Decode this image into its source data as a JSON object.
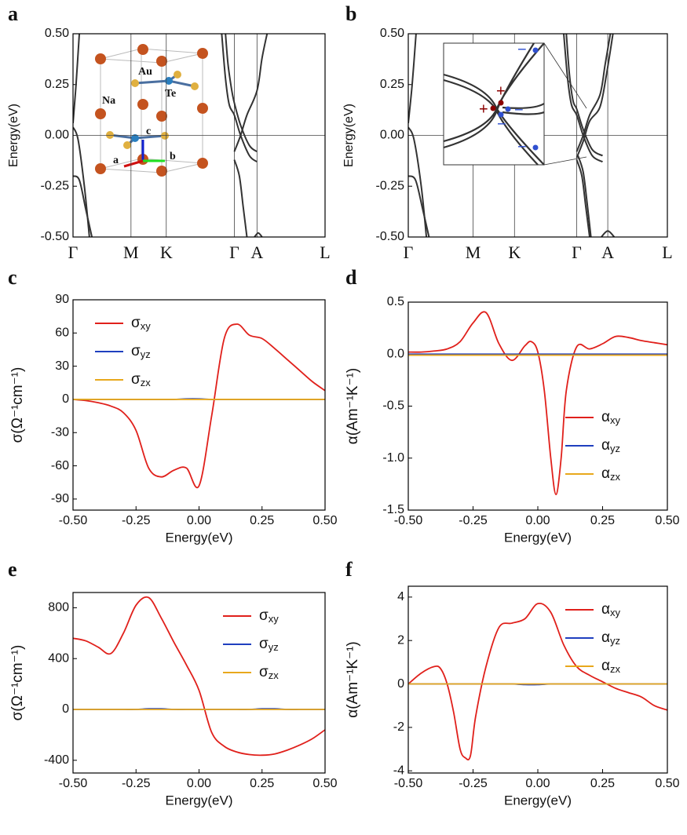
{
  "chart_data": [
    {
      "type": "line",
      "panel_label": "a",
      "ylabel": "Energy(eV)",
      "xlim": [
        0,
        1
      ],
      "ylim": [
        -0.5,
        0.5
      ],
      "xticks": [
        {
          "value": 0,
          "label": "Γ"
        },
        {
          "value": 0.23,
          "label": "M"
        },
        {
          "value": 0.37,
          "label": "K"
        },
        {
          "value": 0.64,
          "label": "Γ"
        },
        {
          "value": 0.73,
          "label": "A"
        },
        {
          "value": 1,
          "label": "L"
        }
      ],
      "yticks": [
        {
          "value": 0.5,
          "label": "0.50"
        },
        0.25,
        {
          "value": 0,
          "label": "0.00"
        },
        -0.25,
        {
          "value": -0.5,
          "label": "-0.50"
        }
      ],
      "vlines": true,
      "hline": 0,
      "annotations": [
        "Au",
        "Te",
        "Na",
        "c",
        "a",
        "b"
      ],
      "series": [
        {
          "color": "#333333",
          "x": [
            0,
            0.012,
            0.025
          ],
          "values": [
            0.06,
            0.25,
            0.5
          ]
        },
        {
          "color": "#333333",
          "x": [
            0,
            0.02,
            0.045,
            0.065
          ],
          "values": [
            0.04,
            -0.02,
            -0.25,
            -0.5
          ]
        },
        {
          "color": "#333333",
          "x": [
            0,
            0.025,
            0.05,
            0.075
          ],
          "values": [
            -0.2,
            -0.22,
            -0.36,
            -0.5
          ]
        },
        {
          "color": "#333333",
          "x": [
            0.59,
            0.605,
            0.62,
            0.64,
            0.665,
            0.7,
            0.73
          ],
          "values": [
            0.5,
            0.28,
            0.15,
            0.1,
            0.0,
            -0.1,
            -0.13
          ]
        },
        {
          "color": "#333333",
          "x": [
            0.605,
            0.615,
            0.63,
            0.64,
            0.665,
            0.7,
            0.73
          ],
          "values": [
            0.5,
            0.35,
            0.22,
            0.16,
            0.05,
            -0.05,
            -0.08
          ]
        },
        {
          "color": "#333333",
          "x": [
            0.64,
            0.665,
            0.69,
            0.73,
            0.75,
            0.77
          ],
          "values": [
            -0.08,
            0.0,
            0.1,
            0.22,
            0.38,
            0.5
          ]
        },
        {
          "color": "#333333",
          "x": [
            0.64,
            0.66,
            0.675,
            0.69
          ],
          "values": [
            -0.12,
            -0.2,
            -0.35,
            -0.5
          ]
        },
        {
          "color": "#333333",
          "x": [
            0.72,
            0.735,
            0.75
          ],
          "values": [
            -0.5,
            -0.48,
            -0.5
          ]
        }
      ]
    },
    {
      "type": "line",
      "panel_label": "b",
      "ylabel": "Energy(eV)",
      "xlim": [
        0,
        1
      ],
      "ylim": [
        -0.5,
        0.5
      ],
      "xticks": [
        {
          "value": 0,
          "label": "Γ"
        },
        {
          "value": 0.25,
          "label": "M"
        },
        {
          "value": 0.41,
          "label": "K"
        },
        {
          "value": 0.65,
          "label": "Γ"
        },
        {
          "value": 0.77,
          "label": "A"
        },
        {
          "value": 1,
          "label": "L"
        }
      ],
      "yticks": [
        {
          "value": 0.5,
          "label": "0.50"
        },
        0.25,
        {
          "value": 0,
          "label": "0.00"
        },
        -0.25,
        {
          "value": -0.5,
          "label": "-0.50"
        }
      ],
      "vlines": true,
      "hline": 0,
      "annotations": [
        "+",
        "+",
        "−",
        "−",
        "−",
        "−"
      ],
      "series": [
        {
          "color": "#333333",
          "x": [
            0,
            0.015,
            0.03
          ],
          "values": [
            0.06,
            0.25,
            0.5
          ]
        },
        {
          "color": "#333333",
          "x": [
            0,
            0.022,
            0.05,
            0.07
          ],
          "values": [
            0.04,
            -0.02,
            -0.25,
            -0.5
          ]
        },
        {
          "color": "#333333",
          "x": [
            0,
            0.028,
            0.055,
            0.08
          ],
          "values": [
            -0.2,
            -0.22,
            -0.36,
            -0.5
          ]
        },
        {
          "color": "#333333",
          "x": [
            0.6,
            0.615,
            0.63,
            0.65,
            0.675,
            0.71,
            0.75
          ],
          "values": [
            0.5,
            0.28,
            0.15,
            0.1,
            0.0,
            -0.1,
            -0.13
          ]
        },
        {
          "color": "#333333",
          "x": [
            0.61,
            0.622,
            0.636,
            0.65,
            0.675,
            0.71,
            0.75
          ],
          "values": [
            0.5,
            0.3,
            0.17,
            0.13,
            0.03,
            -0.07,
            -0.1
          ]
        },
        {
          "color": "#333333",
          "x": [
            0.65,
            0.675,
            0.7,
            0.74,
            0.76,
            0.78
          ],
          "values": [
            -0.08,
            0.0,
            0.1,
            0.2,
            0.35,
            0.5
          ]
        },
        {
          "color": "#333333",
          "x": [
            0.65,
            0.675,
            0.7,
            0.74,
            0.765,
            0.79
          ],
          "values": [
            -0.11,
            -0.03,
            0.07,
            0.14,
            0.3,
            0.5
          ]
        },
        {
          "color": "#333333",
          "x": [
            0.65,
            0.67,
            0.685,
            0.7
          ],
          "values": [
            -0.12,
            -0.2,
            -0.35,
            -0.5
          ]
        },
        {
          "color": "#333333",
          "x": [
            0.655,
            0.675,
            0.69,
            0.705
          ],
          "values": [
            -0.1,
            -0.18,
            -0.33,
            -0.5
          ]
        },
        {
          "color": "#333333",
          "x": [
            0.745,
            0.77,
            0.795
          ],
          "values": [
            -0.5,
            -0.47,
            -0.5
          ]
        }
      ]
    },
    {
      "type": "line",
      "panel_label": "c",
      "xlabel": "Energy(eV)",
      "ylabel": "σ(Ω⁻¹cm⁻¹)",
      "xlim": [
        -0.5,
        0.5
      ],
      "ylim": [
        -100,
        90
      ],
      "xticks": [
        {
          "value": -0.5,
          "label": "-0.50"
        },
        -0.25,
        {
          "value": 0,
          "label": "0.00"
        },
        0.25,
        {
          "value": 0.5,
          "label": "0.50"
        }
      ],
      "yticks": [
        -90,
        -60,
        -30,
        0,
        30,
        60,
        90
      ],
      "legend": "upper left",
      "x": [
        -0.5,
        -0.45,
        -0.4,
        -0.35,
        -0.3,
        -0.25,
        -0.2,
        -0.15,
        -0.1,
        -0.05,
        0,
        0.05,
        0.1,
        0.15,
        0.2,
        0.25,
        0.3,
        0.35,
        0.4,
        0.45,
        0.5
      ],
      "series": [
        {
          "name": "σxy",
          "color": "#e0201b",
          "values": [
            0,
            -1,
            -3,
            -6,
            -12,
            -28,
            -62,
            -70,
            -64,
            -62,
            -78,
            -15,
            55,
            68,
            58,
            55,
            46,
            36,
            26,
            16,
            8
          ]
        },
        {
          "name": "σyz",
          "color": "#1f3fbf",
          "values": [
            0,
            0,
            0,
            0,
            0,
            0,
            0,
            0,
            0,
            0.5,
            0.5,
            0,
            0,
            0,
            0,
            0,
            0,
            0,
            0,
            0,
            0
          ]
        },
        {
          "name": "σzx",
          "color": "#e8a81c",
          "values": [
            0,
            0,
            0,
            0,
            0,
            0,
            0,
            0,
            0,
            0,
            0,
            0,
            0,
            0,
            0,
            0,
            0,
            0,
            0,
            0,
            0
          ]
        }
      ]
    },
    {
      "type": "line",
      "panel_label": "d",
      "xlabel": "Energy(eV)",
      "ylabel": "α(Am⁻¹K⁻¹)",
      "xlim": [
        -0.5,
        0.5
      ],
      "ylim": [
        -1.5,
        0.5
      ],
      "xticks": [
        {
          "value": -0.5,
          "label": "-0.50"
        },
        -0.25,
        {
          "value": 0,
          "label": "0.00"
        },
        0.25,
        {
          "value": 0.5,
          "label": "0.50"
        }
      ],
      "yticks": [
        -1.5,
        {
          "value": -1,
          "label": "-1.0"
        },
        -0.5,
        {
          "value": 0,
          "label": "0.0"
        },
        0.5
      ],
      "legend": "lower right",
      "x": [
        -0.5,
        -0.45,
        -0.4,
        -0.35,
        -0.3,
        -0.25,
        -0.2,
        -0.15,
        -0.1,
        -0.05,
        -0.025,
        0,
        0.025,
        0.05,
        0.07,
        0.09,
        0.11,
        0.15,
        0.2,
        0.25,
        0.3,
        0.35,
        0.4,
        0.45,
        0.5
      ],
      "series": [
        {
          "name": "αxy",
          "color": "#e0201b",
          "values": [
            0.02,
            0.02,
            0.03,
            0.05,
            0.12,
            0.3,
            0.4,
            0.1,
            -0.06,
            0.08,
            0.12,
            0.02,
            -0.35,
            -1.0,
            -1.35,
            -1.0,
            -0.35,
            0.07,
            0.05,
            0.1,
            0.17,
            0.16,
            0.13,
            0.11,
            0.09
          ]
        },
        {
          "name": "αyz",
          "color": "#1f3fbf",
          "values": [
            0,
            0,
            0,
            0,
            0,
            0,
            0,
            0,
            0,
            0,
            0,
            0,
            0,
            0,
            0,
            0,
            0,
            0,
            0,
            0,
            0,
            0,
            0,
            0,
            0
          ]
        },
        {
          "name": "αzx",
          "color": "#e8a81c",
          "values": [
            -0.01,
            -0.01,
            -0.01,
            -0.01,
            -0.01,
            -0.01,
            -0.01,
            -0.01,
            -0.01,
            -0.01,
            -0.01,
            -0.01,
            -0.01,
            -0.01,
            -0.01,
            -0.01,
            -0.01,
            -0.01,
            -0.01,
            -0.01,
            -0.01,
            -0.01,
            -0.01,
            -0.01,
            -0.01
          ]
        }
      ]
    },
    {
      "type": "line",
      "panel_label": "e",
      "xlabel": "Energy(eV)",
      "ylabel": "σ(Ω⁻¹cm⁻¹)",
      "xlim": [
        -0.5,
        0.5
      ],
      "ylim": [
        -500,
        920
      ],
      "xticks": [
        {
          "value": -0.5,
          "label": "-0.50"
        },
        -0.25,
        {
          "value": 0,
          "label": "0.00"
        },
        0.25,
        {
          "value": 0.5,
          "label": "0.50"
        }
      ],
      "yticks": [
        -400,
        0,
        400,
        800
      ],
      "legend": "upper right",
      "x": [
        -0.5,
        -0.45,
        -0.4,
        -0.35,
        -0.3,
        -0.25,
        -0.2,
        -0.15,
        -0.1,
        -0.05,
        0,
        0.05,
        0.1,
        0.15,
        0.2,
        0.25,
        0.3,
        0.35,
        0.4,
        0.45,
        0.5
      ],
      "series": [
        {
          "name": "σxy",
          "color": "#e0201b",
          "values": [
            560,
            540,
            490,
            440,
            600,
            820,
            880,
            720,
            530,
            350,
            150,
            -180,
            -290,
            -335,
            -355,
            -360,
            -350,
            -320,
            -280,
            -230,
            -160
          ]
        },
        {
          "name": "σyz",
          "color": "#1f3fbf",
          "values": [
            0,
            0,
            0,
            0,
            0,
            0,
            5,
            5,
            0,
            0,
            0,
            0,
            0,
            0,
            0,
            5,
            5,
            0,
            0,
            0,
            0
          ]
        },
        {
          "name": "σzx",
          "color": "#e8a81c",
          "values": [
            0,
            0,
            0,
            0,
            0,
            0,
            0,
            0,
            0,
            0,
            0,
            0,
            0,
            0,
            0,
            0,
            0,
            0,
            0,
            0,
            0
          ]
        }
      ]
    },
    {
      "type": "line",
      "panel_label": "f",
      "xlabel": "Energy(eV)",
      "ylabel": "α(Am⁻¹K⁻¹)",
      "xlim": [
        -0.5,
        0.5
      ],
      "ylim": [
        -4.1,
        4.5
      ],
      "xticks": [
        {
          "value": -0.5,
          "label": "-0.50"
        },
        -0.25,
        {
          "value": 0,
          "label": "0.00"
        },
        0.25,
        {
          "value": 0.5,
          "label": "0.50"
        }
      ],
      "yticks": [
        -4,
        -2,
        0,
        2,
        4
      ],
      "legend": "upper right",
      "x": [
        -0.5,
        -0.45,
        -0.4,
        -0.375,
        -0.35,
        -0.325,
        -0.3,
        -0.28,
        -0.26,
        -0.24,
        -0.2,
        -0.15,
        -0.1,
        -0.05,
        0,
        0.05,
        0.1,
        0.15,
        0.2,
        0.25,
        0.3,
        0.35,
        0.4,
        0.45,
        0.5
      ],
      "series": [
        {
          "name": "αxy",
          "color": "#e0201b",
          "values": [
            0,
            0.5,
            0.8,
            0.7,
            0,
            -1.3,
            -3.0,
            -3.4,
            -3.3,
            -1.5,
            0.8,
            2.6,
            2.8,
            3.0,
            3.7,
            3.3,
            1.8,
            0.8,
            0.4,
            0.1,
            -0.2,
            -0.4,
            -0.6,
            -1.0,
            -1.2
          ]
        },
        {
          "name": "αyz",
          "color": "#1f3fbf",
          "values": [
            0,
            0,
            0,
            0,
            0,
            0,
            0,
            0,
            0,
            0,
            0,
            0,
            0,
            -0.03,
            -0.03,
            0,
            0,
            0,
            0,
            0,
            0,
            0,
            0,
            0,
            0
          ]
        },
        {
          "name": "αzx",
          "color": "#e8a81c",
          "values": [
            0,
            0,
            0,
            0,
            0,
            0,
            0,
            0,
            0,
            0,
            0,
            0,
            0,
            0,
            0,
            0,
            0,
            0,
            0,
            0,
            0,
            0,
            0,
            0,
            0
          ]
        }
      ]
    }
  ]
}
